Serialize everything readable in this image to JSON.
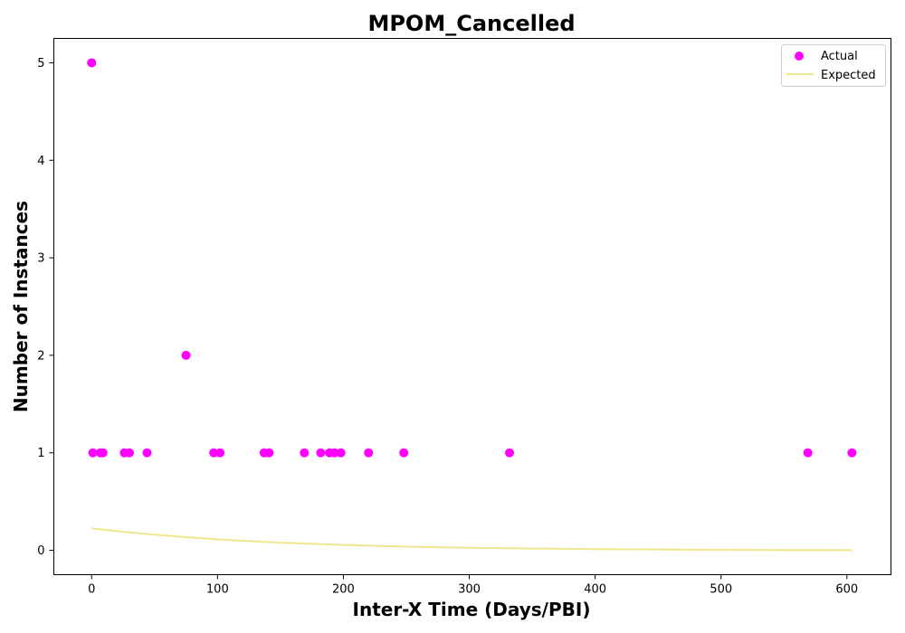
{
  "chart_data": {
    "type": "scatter",
    "title": "MPOM_Cancelled",
    "xlabel": "Inter-X Time (Days/PBI)",
    "ylabel": "Number of Instances",
    "xlim": [
      -30,
      635
    ],
    "ylim": [
      -0.25,
      5.25
    ],
    "xticks": [
      0,
      100,
      200,
      300,
      400,
      500,
      600
    ],
    "yticks": [
      0,
      1,
      2,
      3,
      4,
      5
    ],
    "grid": false,
    "legend_position": "top-right",
    "series": [
      {
        "name": "Actual",
        "kind": "scatter",
        "color": "#ff00ff",
        "points": [
          [
            0,
            5
          ],
          [
            1,
            1
          ],
          [
            7,
            1
          ],
          [
            9,
            1
          ],
          [
            26,
            1
          ],
          [
            30,
            1
          ],
          [
            44,
            1
          ],
          [
            75,
            2
          ],
          [
            97,
            1
          ],
          [
            102,
            1
          ],
          [
            137,
            1
          ],
          [
            141,
            1
          ],
          [
            169,
            1
          ],
          [
            182,
            1
          ],
          [
            189,
            1
          ],
          [
            193,
            1
          ],
          [
            198,
            1
          ],
          [
            220,
            1
          ],
          [
            248,
            1
          ],
          [
            332,
            1
          ],
          [
            569,
            1
          ],
          [
            604,
            1
          ]
        ]
      },
      {
        "name": "Expected",
        "kind": "line",
        "color": "#f0e68c",
        "points": [
          [
            0,
            0.225
          ],
          [
            25,
            0.19
          ],
          [
            50,
            0.16
          ],
          [
            75,
            0.135
          ],
          [
            100,
            0.112
          ],
          [
            150,
            0.078
          ],
          [
            200,
            0.055
          ],
          [
            250,
            0.038
          ],
          [
            300,
            0.026
          ],
          [
            350,
            0.018
          ],
          [
            400,
            0.012
          ],
          [
            450,
            0.008
          ],
          [
            500,
            0.005
          ],
          [
            550,
            0.003
          ],
          [
            604,
            0.002
          ]
        ]
      }
    ]
  }
}
